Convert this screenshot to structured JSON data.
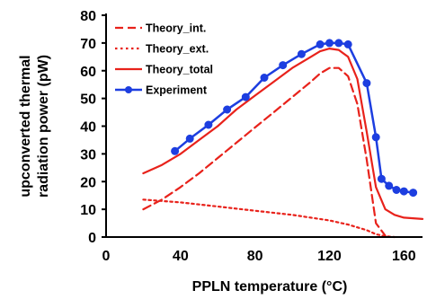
{
  "chart_data": {
    "type": "line",
    "xlabel": "PPLN temperature (°C)",
    "ylabel_lines": [
      "upconverted thermal",
      "radiation power (pW)"
    ],
    "xlim": [
      0,
      170
    ],
    "ylim": [
      0,
      80
    ],
    "xticks": [
      0,
      40,
      80,
      120,
      160
    ],
    "yticks": [
      0,
      10,
      20,
      30,
      40,
      50,
      60,
      70,
      80
    ],
    "grid": false,
    "legend_position": "top-left",
    "colors": {
      "theory": "#e8221b",
      "experiment": "#1d3ee0",
      "axis": "#000000"
    },
    "series": [
      {
        "name": "Theory_int.",
        "style": "dashed",
        "color": "#e8221b",
        "x": [
          20,
          30,
          40,
          50,
          60,
          70,
          80,
          90,
          100,
          110,
          115,
          120,
          125,
          130,
          135,
          140,
          145,
          150
        ],
        "y": [
          10,
          13.5,
          18,
          23,
          28.5,
          34,
          39.5,
          45,
          50.5,
          56,
          59,
          61,
          61,
          58,
          48,
          28,
          5,
          0.5
        ]
      },
      {
        "name": "Theory_ext.",
        "style": "dotted",
        "color": "#e8221b",
        "x": [
          20,
          40,
          60,
          80,
          100,
          110,
          120,
          130,
          140,
          145,
          150,
          155
        ],
        "y": [
          13.5,
          12.5,
          11,
          9.5,
          8,
          7,
          6,
          4.5,
          2.5,
          1,
          0.3,
          0
        ]
      },
      {
        "name": "Theory_total",
        "style": "solid",
        "color": "#e8221b",
        "x": [
          20,
          30,
          40,
          50,
          60,
          70,
          80,
          90,
          100,
          110,
          115,
          120,
          125,
          130,
          135,
          140,
          145,
          150,
          155,
          160,
          170
        ],
        "y": [
          23,
          26,
          30,
          35,
          40,
          46,
          51,
          56,
          61,
          65,
          67,
          68,
          67.5,
          65,
          57,
          38,
          18,
          10,
          8,
          7,
          6.5
        ]
      },
      {
        "name": "Experiment",
        "style": "solid-markers",
        "color": "#1d3ee0",
        "x": [
          37,
          45,
          55,
          65,
          75,
          85,
          95,
          105,
          115,
          120,
          125,
          130,
          140,
          145,
          148,
          152,
          156,
          160,
          165
        ],
        "y": [
          31,
          35.5,
          40.5,
          46,
          50.5,
          57.5,
          62,
          66,
          69.5,
          70,
          70,
          69.5,
          55.5,
          36,
          21,
          18.5,
          17,
          16.5,
          16
        ]
      }
    ]
  }
}
